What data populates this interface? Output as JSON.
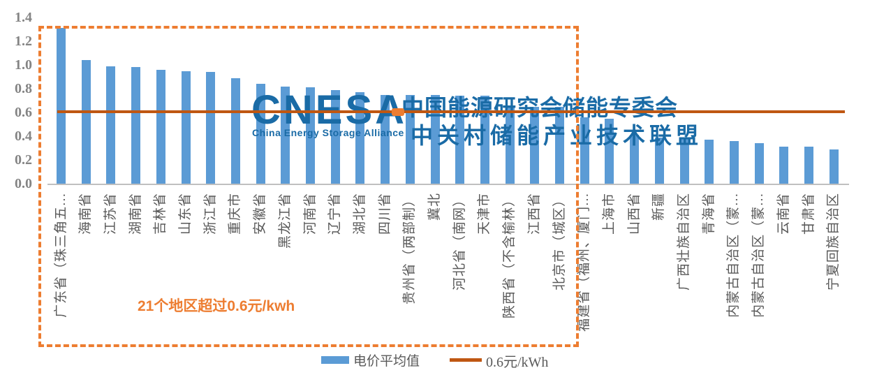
{
  "chart_data": {
    "type": "bar",
    "title": "",
    "unit": "元/kWh",
    "categories": [
      "广东省（珠三角五...",
      "海南省",
      "江苏省",
      "湖南省",
      "吉林省",
      "山东省",
      "浙江省",
      "重庆市",
      "安徽省",
      "黑龙江省",
      "河南省",
      "辽宁省",
      "湖北省",
      "四川省",
      "贵州省（两部制）",
      "冀北",
      "河北省（南网）",
      "天津市",
      "陕西省（不含榆林）",
      "江西省",
      "北京市（城区）",
      "福建省（福州、厦门...",
      "上海市",
      "山西省",
      "新疆",
      "广西壮族自治区",
      "青海省",
      "内蒙古自治区（蒙...",
      "内蒙古自治区（蒙...",
      "云南省",
      "甘肃省",
      "宁夏回族自治区"
    ],
    "values": [
      1.31,
      1.04,
      0.99,
      0.98,
      0.96,
      0.95,
      0.94,
      0.89,
      0.84,
      0.82,
      0.81,
      0.79,
      0.77,
      0.75,
      0.75,
      0.75,
      0.74,
      0.74,
      0.66,
      0.65,
      0.65,
      0.56,
      0.55,
      0.41,
      0.39,
      0.38,
      0.37,
      0.36,
      0.34,
      0.31,
      0.31,
      0.29
    ],
    "ylim": [
      0,
      1.4
    ],
    "yticks": [
      "1.4",
      "1.2",
      "1.0",
      "0.8",
      "0.6",
      "0.4",
      "0.2",
      "0.0"
    ],
    "grid": "off",
    "bar_color": "#5B9BD5",
    "reference_line": {
      "value": 0.6,
      "label": "0.6元/kWh",
      "color": "#BF5712"
    },
    "legend": {
      "position": "bottom",
      "bar_label": "电价平均值",
      "line_label": "0.6元/kWh"
    },
    "annotation": {
      "text": "21个地区超过0.6元/kwh",
      "color": "#ED7D31"
    },
    "highlight_box": {
      "bars_enclosed": 21,
      "style": "dashed",
      "color": "#ED7D31"
    }
  },
  "watermark": {
    "logo_text": "CNESA",
    "logo_subtext": "China Energy Storage Alliance",
    "line1": "中国能源研究会储能专委会",
    "line2": "中关村储能产业技术联盟",
    "color": "#1A6BA6",
    "accent_color": "#ED7D31"
  },
  "colors": {
    "bar": "#5B9BD5",
    "reference_line": "#BF5712",
    "highlight": "#ED7D31",
    "axis_tick_text": "#848484",
    "category_text": "#595959",
    "baseline": "#BFBFBF"
  }
}
